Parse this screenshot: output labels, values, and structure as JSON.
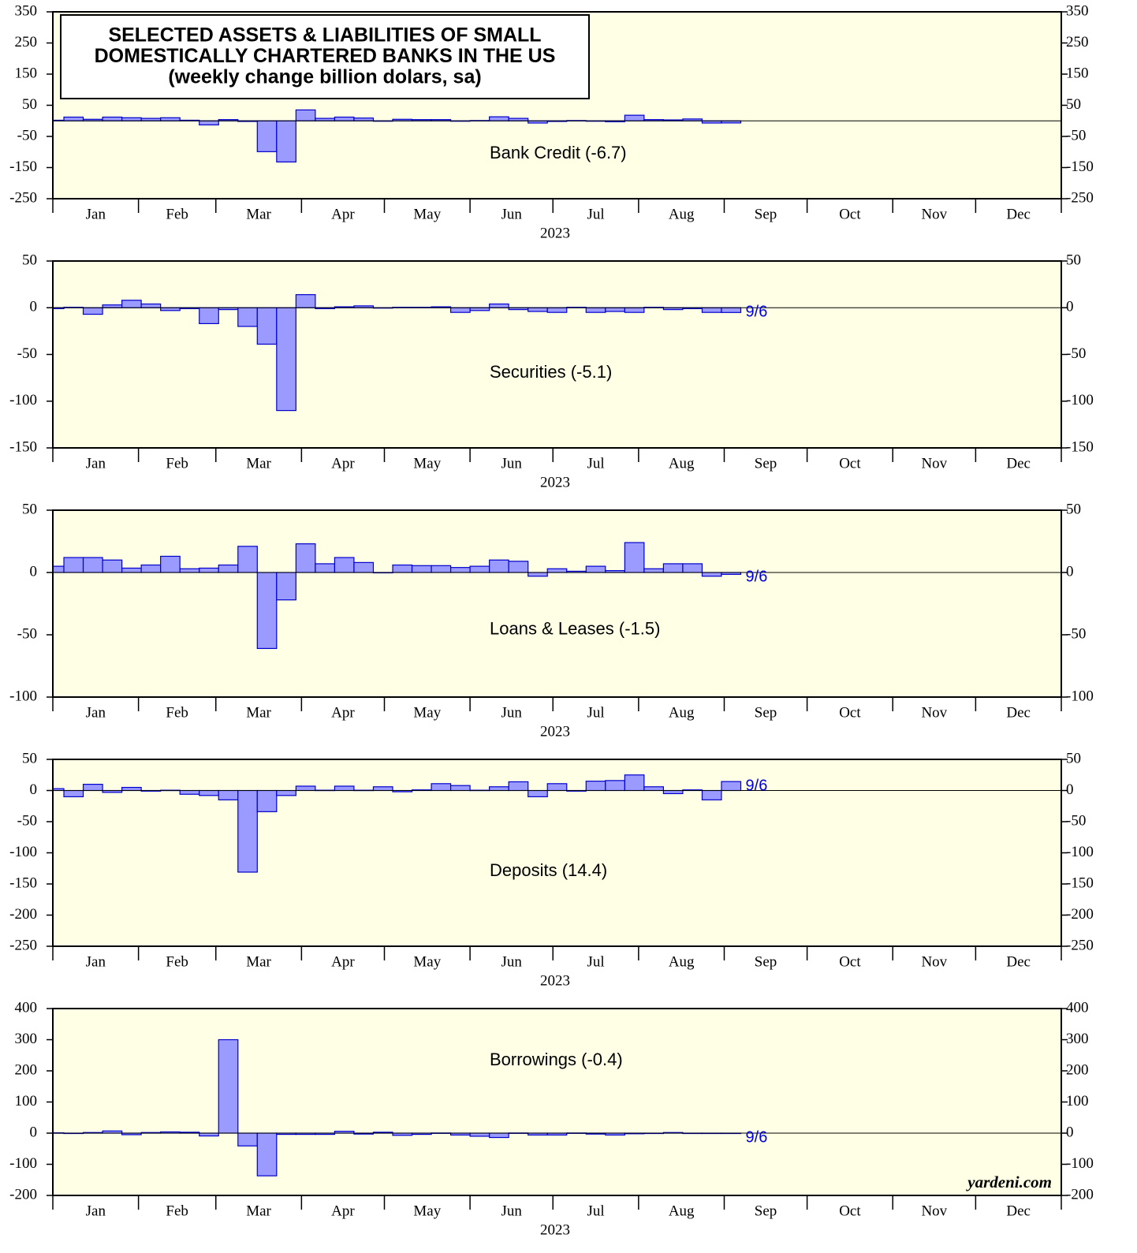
{
  "chart_data": [
    {
      "type": "bar",
      "title": [
        "SELECTED ASSETS & LIABILITIES OF SMALL",
        "DOMESTICALLY CHARTERED BANKS IN THE US",
        "(weekly change billion dolars, sa)"
      ],
      "label": "Bank Credit (-6.7)",
      "color": "#9b9bff",
      "months": [
        "Jan",
        "Feb",
        "Mar",
        "Apr",
        "May",
        "Jun",
        "Jul",
        "Aug",
        "Sep",
        "Oct",
        "Nov",
        "Dec"
      ],
      "year": "2023",
      "ylim": [
        -250,
        350
      ],
      "yticks": [
        -250,
        -150,
        -50,
        50,
        150,
        250,
        350
      ],
      "values": [
        2,
        12,
        5,
        12,
        10,
        8,
        10,
        2,
        -13,
        4,
        -2,
        -99,
        -132,
        35,
        8,
        12,
        9,
        -1,
        5,
        4,
        4,
        -1,
        1,
        13,
        8,
        -7,
        -2,
        1,
        -1,
        -3,
        18,
        4,
        3,
        6,
        -7,
        -6.7
      ]
    },
    {
      "type": "bar",
      "label": "Securities (-5.1)",
      "end_label": "9/6",
      "color": "#9b9bff",
      "months": [
        "Jan",
        "Feb",
        "Mar",
        "Apr",
        "May",
        "Jun",
        "Jul",
        "Aug",
        "Sep",
        "Oct",
        "Nov",
        "Dec"
      ],
      "year": "2023",
      "ylim": [
        -150,
        50
      ],
      "yticks": [
        -150,
        -100,
        -50,
        0,
        50
      ],
      "values": [
        -1,
        0.5,
        -7,
        3,
        8,
        4,
        -3,
        -1,
        -17,
        -2,
        -20,
        -39,
        -110,
        14,
        -1,
        1,
        2,
        0,
        0.5,
        0.5,
        1,
        -5,
        -3,
        4,
        -2,
        -4,
        -5,
        0.5,
        -5,
        -4,
        -5,
        0.5,
        -2,
        -1,
        -5,
        -5.1
      ]
    },
    {
      "type": "bar",
      "label": "Loans & Leases (-1.5)",
      "end_label": "9/6",
      "color": "#9b9bff",
      "months": [
        "Jan",
        "Feb",
        "Mar",
        "Apr",
        "May",
        "Jun",
        "Jul",
        "Aug",
        "Sep",
        "Oct",
        "Nov",
        "Dec"
      ],
      "year": "2023",
      "ylim": [
        -100,
        50
      ],
      "yticks": [
        -100,
        -50,
        0,
        50
      ],
      "values": [
        5,
        12,
        12,
        10,
        3.5,
        6,
        13,
        3,
        3.5,
        6,
        21,
        -61,
        -22,
        23,
        7,
        12,
        8,
        0,
        6,
        5.5,
        5.5,
        4,
        5,
        10,
        9,
        -3,
        3,
        1,
        5,
        1.5,
        24,
        3,
        7,
        7,
        -3,
        -1.5
      ]
    },
    {
      "type": "bar",
      "label": "Deposits (14.4)",
      "end_label": "9/6",
      "color": "#9b9bff",
      "months": [
        "Jan",
        "Feb",
        "Mar",
        "Apr",
        "May",
        "Jun",
        "Jul",
        "Aug",
        "Sep",
        "Oct",
        "Nov",
        "Dec"
      ],
      "year": "2023",
      "ylim": [
        -250,
        50
      ],
      "yticks": [
        -250,
        -200,
        -150,
        -100,
        -50,
        0,
        50
      ],
      "values": [
        3,
        -10,
        10,
        -3,
        5,
        -1,
        0.5,
        -6,
        -8,
        -15,
        -131,
        -34,
        -8,
        7,
        0.5,
        7,
        0.5,
        6,
        -2,
        1,
        11,
        8,
        0.5,
        6,
        14,
        -10,
        11,
        -1,
        15,
        16,
        25,
        6,
        -5,
        1,
        -15,
        14.4
      ]
    },
    {
      "type": "bar",
      "label": "Borrowings (-0.4)",
      "end_label": "9/6",
      "source": "yardeni.com",
      "color": "#9b9bff",
      "months": [
        "Jan",
        "Feb",
        "Mar",
        "Apr",
        "May",
        "Jun",
        "Jul",
        "Aug",
        "Sep",
        "Oct",
        "Nov",
        "Dec"
      ],
      "year": "2023",
      "ylim": [
        -200,
        400
      ],
      "yticks": [
        -200,
        -100,
        0,
        100,
        200,
        300,
        400
      ],
      "values": [
        1,
        -1,
        2,
        7,
        -5,
        2,
        4,
        3,
        -9,
        300,
        -41,
        -137,
        -4,
        -4,
        -4,
        6,
        -3,
        3,
        -7,
        -4,
        0.5,
        -6,
        -10,
        -14,
        0.5,
        -6,
        -6,
        0.5,
        -3,
        -6,
        -2,
        -1,
        2,
        -1,
        -0.5,
        -0.4
      ]
    }
  ]
}
